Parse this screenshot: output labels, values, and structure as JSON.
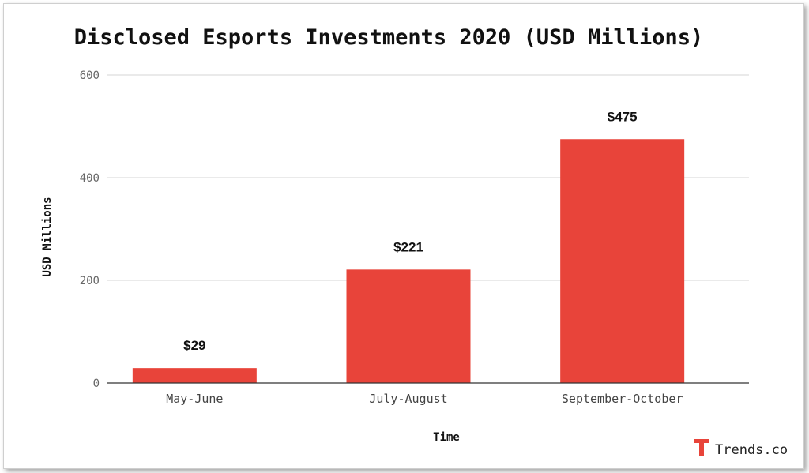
{
  "chart_data": {
    "type": "bar",
    "title": "Disclosed Esports Investments 2020 (USD Millions)",
    "xlabel": "Time",
    "ylabel": "USD Millions",
    "categories": [
      "May-June",
      "July-August",
      "September-October"
    ],
    "values": [
      29,
      221,
      475
    ],
    "data_labels": [
      "$29",
      "$221",
      "$475"
    ],
    "ylim": [
      0,
      600
    ],
    "yticks": [
      0,
      200,
      400,
      600
    ],
    "grid": true,
    "bar_color": "#e8443a"
  },
  "brand": {
    "name": "Trends.co",
    "color": "#e8443a",
    "icon": "trends-logo-icon"
  }
}
